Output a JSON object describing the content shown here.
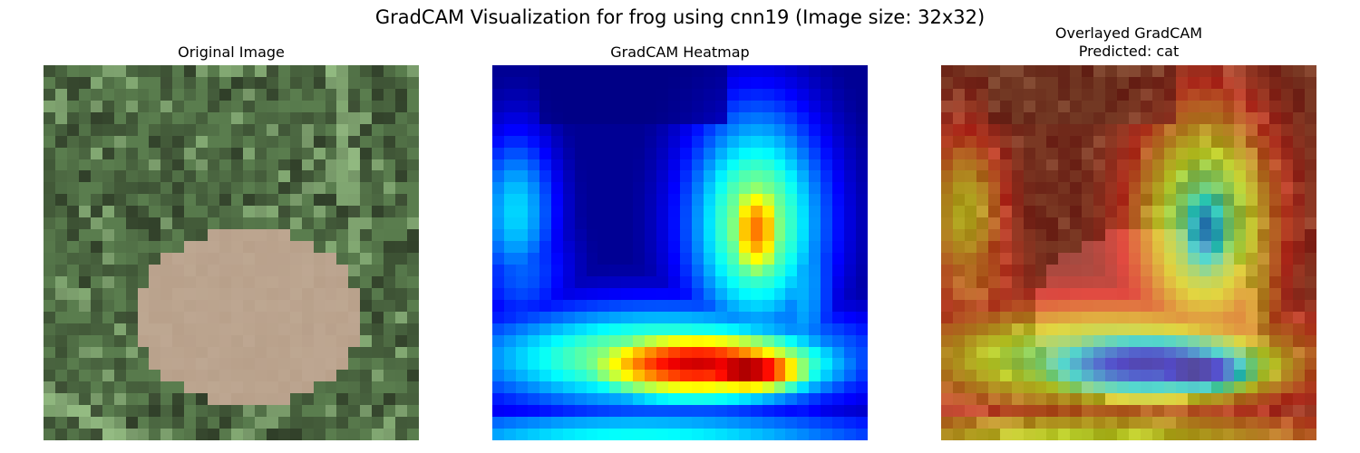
{
  "figure": {
    "suptitle": "GradCAM Visualization for frog using cnn19 (Image size: 32x32)"
  },
  "panels": [
    {
      "id": "original",
      "title": "Original Image"
    },
    {
      "id": "heatmap",
      "title": "GradCAM Heatmap"
    },
    {
      "id": "overlay",
      "title_line1": "Overlayed GradCAM",
      "title_line2": "Predicted: cat"
    }
  ],
  "image": {
    "resolution": 32,
    "colormap": "jet",
    "overlay_alpha": 0.4
  },
  "colors": {
    "grass_dark": "#2d3a26",
    "grass_mid": "#5a7d4e",
    "grass_light": "#9cc48a",
    "frog": "#b8a08a",
    "heat_low": "#00008b",
    "heat_high": "#8b0000"
  }
}
